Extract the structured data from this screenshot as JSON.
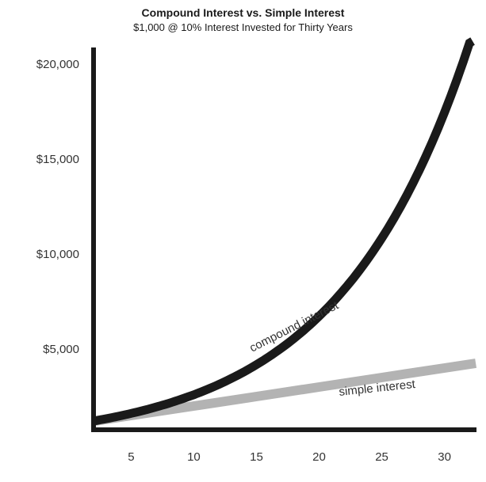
{
  "chart_data": {
    "type": "line",
    "title": "Compound Interest vs. Simple Interest",
    "subtitle": "$1,000 @ 10% Interest Invested for Thirty Years",
    "xlabel": "",
    "ylabel": "",
    "xlim": [
      2,
      33
    ],
    "ylim": [
      0,
      21000
    ],
    "grid": false,
    "x_ticks": [
      5,
      10,
      15,
      20,
      25,
      30
    ],
    "y_ticks": [
      {
        "value": 5000,
        "label": "$5,000"
      },
      {
        "value": 10000,
        "label": "$10,000"
      },
      {
        "value": 15000,
        "label": "$15,000"
      },
      {
        "value": 20000,
        "label": "$20,000"
      }
    ],
    "series": [
      {
        "name": "compound interest",
        "color": "#1a1a1a",
        "principal": 1000,
        "rate": 0.1,
        "x_start": 2,
        "x_end": 33,
        "x": [
          2,
          5,
          10,
          15,
          20,
          25,
          30,
          32,
          33
        ],
        "values": [
          1210,
          1611,
          2594,
          4177,
          6727,
          10835,
          17449,
          21000,
          21000
        ]
      },
      {
        "name": "simple interest",
        "color": "#b3b3b3",
        "x": [
          2,
          5,
          10,
          15,
          20,
          25,
          30,
          32.5
        ],
        "values": [
          1200,
          1500,
          2000,
          2500,
          3000,
          3500,
          4000,
          4250
        ]
      }
    ],
    "annotations": [
      {
        "text": "compound interest",
        "series": 0
      },
      {
        "text": "simple interest",
        "series": 1
      }
    ]
  }
}
